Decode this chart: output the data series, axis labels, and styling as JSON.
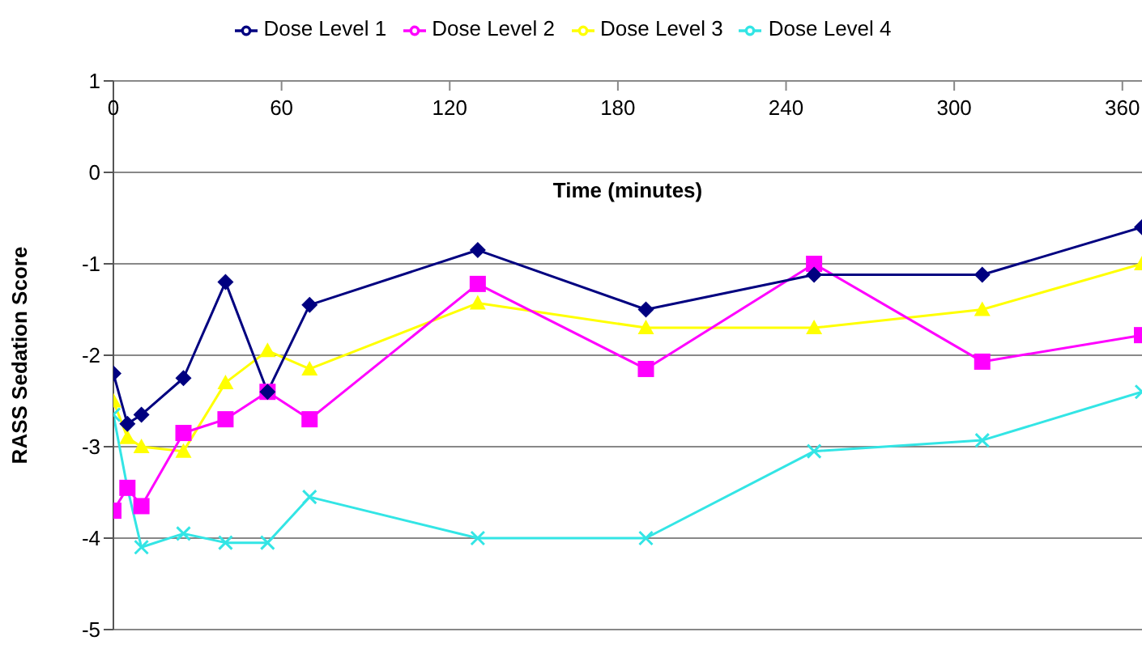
{
  "chart_data": {
    "type": "line",
    "xlabel": "Time (minutes)",
    "ylabel": "RASS Sedation Score",
    "x": [
      0,
      5,
      10,
      25,
      40,
      55,
      70,
      130,
      190,
      250,
      310,
      367
    ],
    "xlim": [
      0,
      367
    ],
    "xticks": [
      0,
      60,
      120,
      180,
      240,
      300,
      360
    ],
    "ylim": [
      -5,
      1
    ],
    "yticks": [
      -5,
      -4,
      -3,
      -2,
      -1,
      0,
      1
    ],
    "grid": "y",
    "legend": "top",
    "series": [
      {
        "name": "Dose Level 1",
        "color": "#000080",
        "marker": "diamond",
        "values": [
          -2.2,
          -2.75,
          -2.65,
          -2.25,
          -1.2,
          -2.4,
          -1.45,
          -0.85,
          -1.5,
          -1.12,
          -1.12,
          -0.6
        ]
      },
      {
        "name": "Dose Level 2",
        "color": "#ff00ff",
        "marker": "square",
        "values": [
          -3.7,
          -3.45,
          -3.65,
          -2.85,
          -2.7,
          -2.4,
          -2.7,
          -1.22,
          -2.15,
          -1.0,
          -2.07,
          -1.78
        ]
      },
      {
        "name": "Dose Level 3",
        "color": "#ffff00",
        "marker": "triangle",
        "values": [
          -2.5,
          -2.9,
          -3.0,
          -3.05,
          -2.3,
          -1.95,
          -2.15,
          -1.43,
          -1.7,
          -1.7,
          -1.5,
          -1.0
        ]
      },
      {
        "name": "Dose Level 4",
        "color": "#33e5e5",
        "marker": "cross",
        "values": [
          -2.65,
          -3.45,
          -4.1,
          -3.95,
          -4.05,
          -4.05,
          -3.55,
          -4.0,
          -4.0,
          -3.05,
          -2.93,
          -2.4
        ]
      }
    ]
  }
}
